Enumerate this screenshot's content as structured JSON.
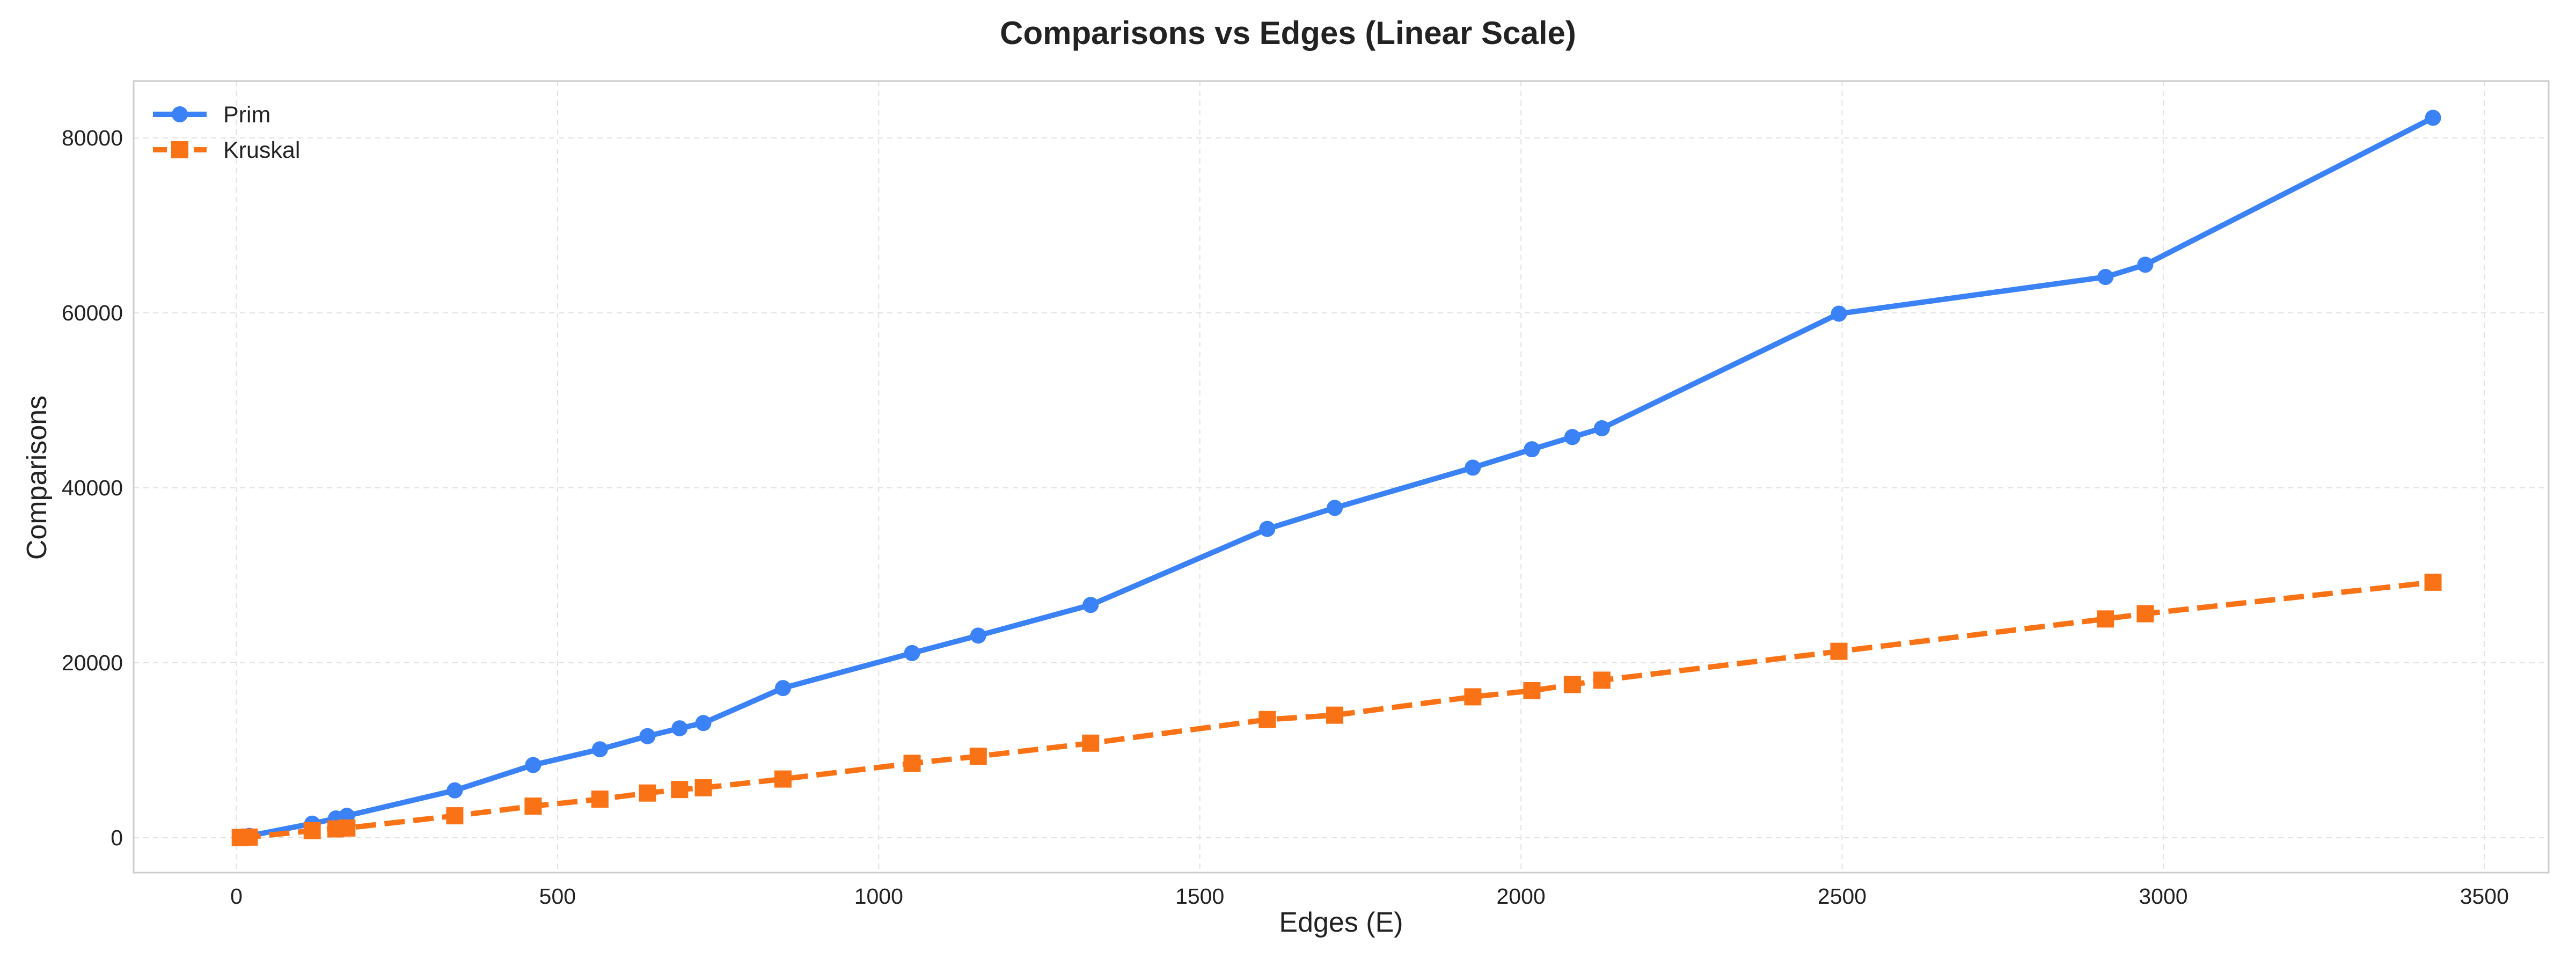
{
  "chart_data": {
    "type": "line",
    "title": "Comparisons vs Edges (Linear Scale)",
    "xlabel": "Edges (E)",
    "ylabel": "Comparisons",
    "xlim": [
      -160,
      3600
    ],
    "ylim": [
      -4000,
      86500
    ],
    "xticks": [
      0,
      500,
      1000,
      1500,
      2000,
      2500,
      3000,
      3500
    ],
    "yticks": [
      0,
      20000,
      40000,
      60000,
      80000
    ],
    "grid": true,
    "legend_position": "top-left",
    "series": [
      {
        "name": "Prim",
        "color": "#3b82f6",
        "marker": "circle",
        "line_style": "solid",
        "x": [
          6,
          20,
          118,
          155,
          172,
          340,
          462,
          566,
          640,
          690,
          727,
          851,
          1052,
          1155,
          1330,
          1605,
          1710,
          1925,
          2017,
          2080,
          2126,
          2495,
          2910,
          2972,
          3420
        ],
        "y": [
          20,
          200,
          1600,
          2200,
          2500,
          5400,
          8300,
          10100,
          11600,
          12500,
          13100,
          17100,
          21100,
          23100,
          26600,
          35300,
          37700,
          42300,
          44400,
          45800,
          46800,
          59900,
          64100,
          65500,
          82300
        ]
      },
      {
        "name": "Kruskal",
        "color": "#f97316",
        "marker": "square",
        "line_style": "dashed",
        "x": [
          6,
          20,
          118,
          155,
          172,
          340,
          462,
          566,
          640,
          690,
          727,
          851,
          1052,
          1155,
          1330,
          1605,
          1710,
          1925,
          2017,
          2080,
          2126,
          2495,
          2910,
          2972,
          3420
        ],
        "y": [
          20,
          60,
          800,
          1000,
          1100,
          2500,
          3600,
          4400,
          5100,
          5500,
          5700,
          6700,
          8500,
          9300,
          10800,
          13500,
          14000,
          16100,
          16800,
          17500,
          18000,
          21300,
          25000,
          25600,
          29200
        ]
      }
    ]
  }
}
